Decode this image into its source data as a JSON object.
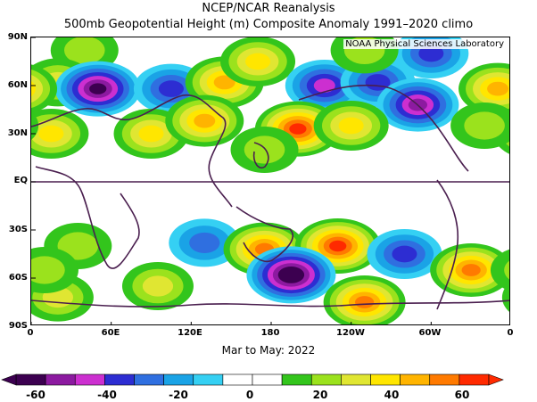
{
  "title": "NCEP/NCAR Reanalysis",
  "subtitle": "500mb Geopotential Height (m) Composite Anomaly 1991–2020 climo",
  "credit": "NOAA Physical Sciences Laboratory",
  "period": "Mar to May: 2022",
  "lat_labels": [
    "90N",
    "60N",
    "30N",
    "EQ",
    "30S",
    "60S",
    "90S"
  ],
  "lon_labels": [
    "0",
    "60E",
    "120E",
    "180",
    "120W",
    "60W",
    "0"
  ],
  "colorbar": {
    "labels": [
      "-60",
      "-40",
      "-20",
      "0",
      "20",
      "40",
      "60"
    ],
    "colors": [
      "#3c0050",
      "#8c1aa0",
      "#cc2fd0",
      "#2d2dd2",
      "#2f6fe0",
      "#1aa3e6",
      "#35d0f3",
      "#ffffff",
      "#ffffff",
      "#33c51c",
      "#9be21d",
      "#e0e632",
      "#ffe600",
      "#ffb400",
      "#ff7a00",
      "#ff2a00"
    ]
  },
  "anomalies": [
    {
      "lon": 40,
      "lat": 82,
      "value": 22
    },
    {
      "lon": 20,
      "lat": 62,
      "value": 28
    },
    {
      "lon": 50,
      "lat": 58,
      "value": -58
    },
    {
      "lon": 105,
      "lat": 58,
      "value": -35
    },
    {
      "lon": 145,
      "lat": 62,
      "value": 40
    },
    {
      "lon": 170,
      "lat": 75,
      "value": 30
    },
    {
      "lon": 220,
      "lat": 60,
      "value": -38
    },
    {
      "lon": 260,
      "lat": 62,
      "value": -35
    },
    {
      "lon": 290,
      "lat": 48,
      "value": -52
    },
    {
      "lon": 300,
      "lat": 80,
      "value": -30
    },
    {
      "lon": 350,
      "lat": 58,
      "value": 38
    },
    {
      "lon": 250,
      "lat": 82,
      "value": 22
    },
    {
      "lon": 15,
      "lat": 30,
      "value": 32
    },
    {
      "lon": 90,
      "lat": 30,
      "value": 30
    },
    {
      "lon": 130,
      "lat": 38,
      "value": 40
    },
    {
      "lon": 200,
      "lat": 33,
      "value": 55
    },
    {
      "lon": 240,
      "lat": 35,
      "value": 32
    },
    {
      "lon": 175,
      "lat": 20,
      "value": 18
    },
    {
      "lon": 340,
      "lat": 35,
      "value": 20
    },
    {
      "lon": 20,
      "lat": -72,
      "value": 28
    },
    {
      "lon": 35,
      "lat": -40,
      "value": 22
    },
    {
      "lon": 130,
      "lat": -38,
      "value": -28
    },
    {
      "lon": 175,
      "lat": -42,
      "value": 45
    },
    {
      "lon": 230,
      "lat": -40,
      "value": 55
    },
    {
      "lon": 195,
      "lat": -58,
      "value": -60
    },
    {
      "lon": 280,
      "lat": -45,
      "value": -35
    },
    {
      "lon": 330,
      "lat": -55,
      "value": 45
    },
    {
      "lon": 250,
      "lat": -75,
      "value": 45
    },
    {
      "lon": 95,
      "lat": -65,
      "value": 25
    },
    {
      "lon": 10,
      "lat": -55,
      "value": 20
    }
  ]
}
